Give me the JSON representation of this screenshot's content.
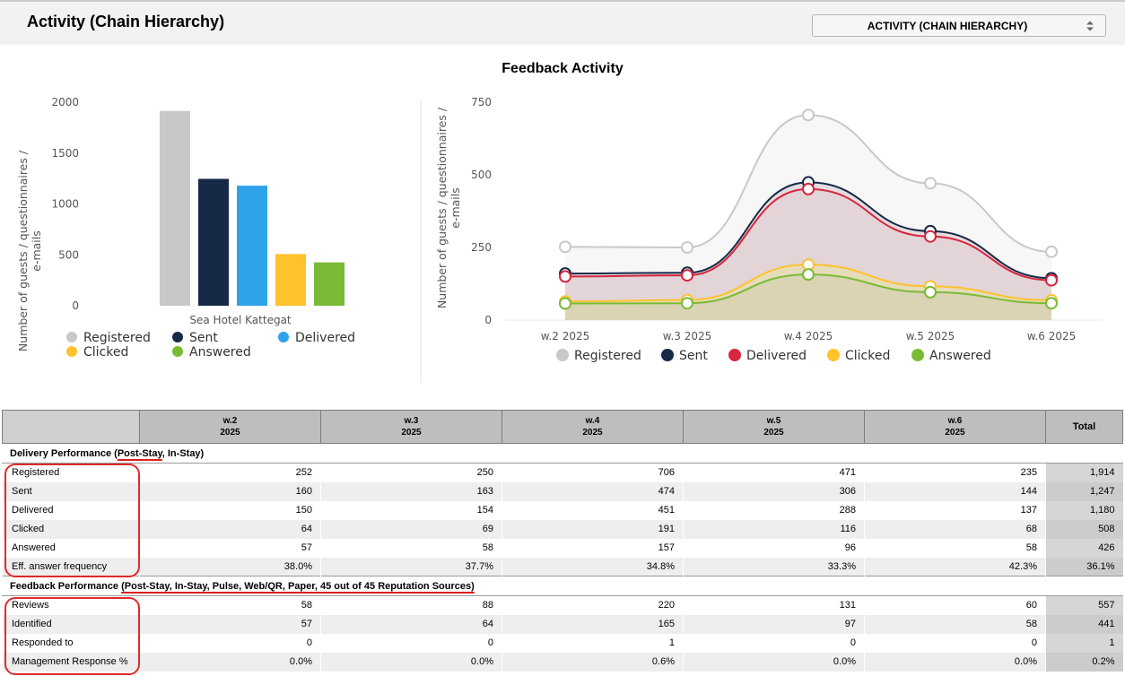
{
  "page": {
    "title": "Activity (Chain Hierarchy)"
  },
  "view_select": {
    "value": "ACTIVITY (CHAIN HIERARCHY)"
  },
  "charts_title": "Feedback Activity",
  "colors": {
    "Registered": "#c8c8c8",
    "Sent": "#162a47",
    "Delivered": "#2fa3ea",
    "Delivered_line": "#d7263d",
    "Clicked": "#fdc22c",
    "Answered": "#79bb35"
  },
  "chart_data": [
    {
      "type": "bar",
      "categories": [
        "Sea Hotel Kattegat"
      ],
      "series": [
        {
          "name": "Registered",
          "values": [
            1914
          ]
        },
        {
          "name": "Sent",
          "values": [
            1247
          ]
        },
        {
          "name": "Delivered",
          "values": [
            1180
          ]
        },
        {
          "name": "Clicked",
          "values": [
            508
          ]
        },
        {
          "name": "Answered",
          "values": [
            426
          ]
        }
      ],
      "ylabel": "Number of guests / questionnaires / e-mails",
      "yticks": [
        "0",
        "500",
        "1000",
        "1500",
        "2000"
      ],
      "ylim": [
        0,
        2000
      ],
      "legend": [
        "Registered",
        "Sent",
        "Delivered",
        "Clicked",
        "Answered"
      ],
      "legend_position": "bottom",
      "grid": false
    },
    {
      "type": "area",
      "categories": [
        "w.2 2025",
        "w.3 2025",
        "w.4 2025",
        "w.5 2025",
        "w.6 2025"
      ],
      "series": [
        {
          "name": "Registered",
          "values": [
            252,
            250,
            706,
            471,
            235
          ]
        },
        {
          "name": "Sent",
          "values": [
            160,
            163,
            474,
            306,
            144
          ]
        },
        {
          "name": "Delivered",
          "values": [
            150,
            154,
            451,
            288,
            137
          ]
        },
        {
          "name": "Clicked",
          "values": [
            64,
            69,
            191,
            116,
            68
          ]
        },
        {
          "name": "Answered",
          "values": [
            57,
            58,
            157,
            96,
            58
          ]
        }
      ],
      "ylabel": "Number of guests / questionnaires / e-mails",
      "yticks": [
        "0",
        "250",
        "500",
        "750"
      ],
      "ylim": [
        0,
        750
      ],
      "legend": [
        "Registered",
        "Sent",
        "Delivered",
        "Clicked",
        "Answered"
      ],
      "legend_position": "bottom",
      "grid": false
    }
  ],
  "table": {
    "columns": [
      {
        "line1": "w.2",
        "line2": "2025"
      },
      {
        "line1": "w.3",
        "line2": "2025"
      },
      {
        "line1": "w.4",
        "line2": "2025"
      },
      {
        "line1": "w.5",
        "line2": "2025"
      },
      {
        "line1": "w.6",
        "line2": "2025"
      }
    ],
    "total_header": "Total",
    "delivery": {
      "title_prefix": "Delivery Performance (",
      "title_highlight": "Post-Stay",
      "title_suffix": ", In-Stay)",
      "rows": [
        {
          "label": "Registered",
          "values": [
            "252",
            "250",
            "706",
            "471",
            "235"
          ],
          "total": "1,914"
        },
        {
          "label": "Sent",
          "values": [
            "160",
            "163",
            "474",
            "306",
            "144"
          ],
          "total": "1,247"
        },
        {
          "label": "Delivered",
          "values": [
            "150",
            "154",
            "451",
            "288",
            "137"
          ],
          "total": "1,180"
        },
        {
          "label": "Clicked",
          "values": [
            "64",
            "69",
            "191",
            "116",
            "68"
          ],
          "total": "508"
        },
        {
          "label": "Answered",
          "values": [
            "57",
            "58",
            "157",
            "96",
            "58"
          ],
          "total": "426"
        },
        {
          "label": "Eff. answer frequency",
          "values": [
            "38.0%",
            "37.7%",
            "34.8%",
            "33.3%",
            "42.3%"
          ],
          "total": "36.1%"
        }
      ]
    },
    "feedback": {
      "title_prefix": "Feedback Performance ",
      "title_highlight": "(Post-Stay, In-Stay, Pulse, Web/QR, Paper, 45 out of 45 Reputation Sources)",
      "rows": [
        {
          "label": "Reviews",
          "values": [
            "58",
            "88",
            "220",
            "131",
            "60"
          ],
          "total": "557"
        },
        {
          "label": "Identified",
          "values": [
            "57",
            "64",
            "165",
            "97",
            "58"
          ],
          "total": "441"
        },
        {
          "label": "Responded to",
          "values": [
            "0",
            "0",
            "1",
            "0",
            "0"
          ],
          "total": "1"
        },
        {
          "label": "Management Response %",
          "values": [
            "0.0%",
            "0.0%",
            "0.6%",
            "0.0%",
            "0.0%"
          ],
          "total": "0.2%"
        }
      ]
    }
  }
}
